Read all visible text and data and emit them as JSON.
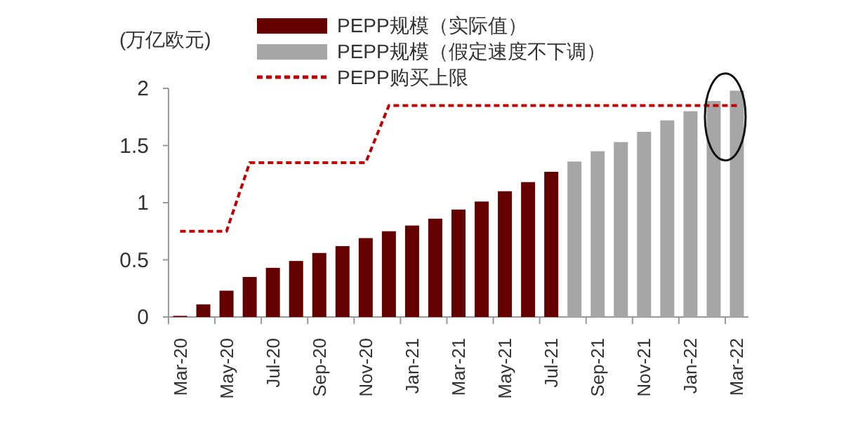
{
  "chart_data": {
    "type": "bar",
    "ylabel": "(万亿欧元)",
    "categories": [
      "Mar-20",
      null,
      "May-20",
      null,
      "Jul-20",
      null,
      "Sep-20",
      null,
      "Nov-20",
      null,
      "Jan-21",
      null,
      "Mar-21",
      null,
      "May-21",
      null,
      "Jul-21",
      null,
      "Sep-21",
      null,
      "Nov-21",
      null,
      "Jan-22",
      null,
      "Mar-22"
    ],
    "series": [
      {
        "name": "PEPP规模（实际值）",
        "type": "bar",
        "color": "#650000",
        "values": [
          0.01,
          0.11,
          0.23,
          0.35,
          0.43,
          0.49,
          0.56,
          0.62,
          0.69,
          0.75,
          0.8,
          0.86,
          0.94,
          1.01,
          1.1,
          1.18,
          1.27,
          null,
          null,
          null,
          null,
          null,
          null,
          null,
          null
        ]
      },
      {
        "name": "PEPP规模（假定速度不下调）",
        "type": "bar",
        "color": "#a6a6a6",
        "values": [
          null,
          null,
          null,
          null,
          null,
          null,
          null,
          null,
          null,
          null,
          null,
          null,
          null,
          null,
          null,
          null,
          null,
          1.36,
          1.45,
          1.53,
          1.62,
          1.72,
          1.8,
          1.89,
          1.98
        ]
      },
      {
        "name": "PEPP购买上限",
        "type": "line",
        "color": "#c00000",
        "line_style": "dashed",
        "values": [
          0.75,
          0.75,
          0.75,
          1.35,
          1.35,
          1.35,
          1.35,
          1.35,
          1.35,
          1.85,
          1.85,
          1.85,
          1.85,
          1.85,
          1.85,
          1.85,
          1.85,
          1.85,
          1.85,
          1.85,
          1.85,
          1.85,
          1.85,
          1.85,
          1.85
        ]
      }
    ],
    "ylim": [
      0,
      2
    ],
    "yticks": [
      0,
      0.5,
      1,
      1.5,
      2
    ],
    "legend": "top"
  }
}
